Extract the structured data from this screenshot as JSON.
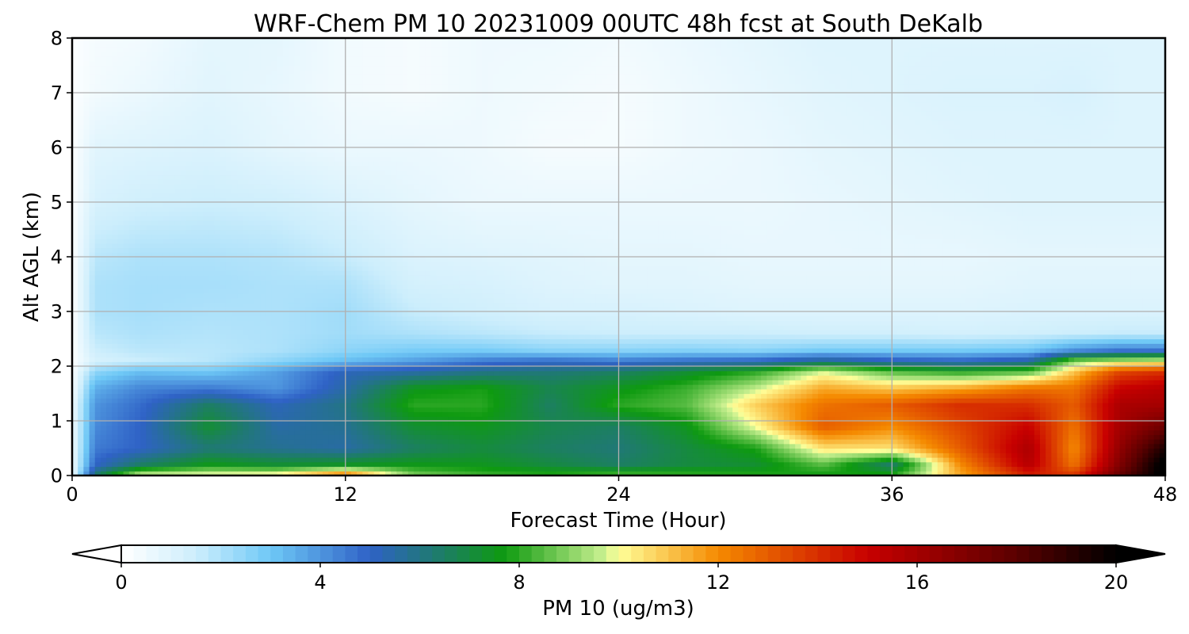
{
  "chart_data": {
    "type": "heatmap",
    "title": "WRF-Chem PM 10  20231009 00UTC 48h fcst at South DeKalb",
    "xlabel": "Forecast Time (Hour)",
    "ylabel": "Alt AGL (km)",
    "xlim": [
      0,
      48
    ],
    "ylim": [
      0,
      8
    ],
    "x_ticks": [
      "0",
      "12",
      "24",
      "36",
      "48"
    ],
    "y_ticks": [
      "0",
      "1",
      "2",
      "3",
      "4",
      "5",
      "6",
      "7",
      "8"
    ],
    "grid": true,
    "colorbar": {
      "label": "PM 10  (ug/m3)",
      "range": [
        0,
        20
      ],
      "ticks": [
        "0",
        "4",
        "8",
        "12",
        "16",
        "20"
      ],
      "extend": "both",
      "stops": [
        {
          "v": 0,
          "c": "#ffffff"
        },
        {
          "v": 1.5,
          "c": "#cdeefc"
        },
        {
          "v": 3,
          "c": "#6ec8f6"
        },
        {
          "v": 5,
          "c": "#2f62c6"
        },
        {
          "v": 6.3,
          "c": "#1f7a70"
        },
        {
          "v": 7.7,
          "c": "#0e9a10"
        },
        {
          "v": 9.7,
          "c": "#c8f090"
        },
        {
          "v": 10,
          "c": "#ffff99"
        },
        {
          "v": 12,
          "c": "#f58a00"
        },
        {
          "v": 15,
          "c": "#c80000"
        },
        {
          "v": 18,
          "c": "#5a0000"
        },
        {
          "v": 20,
          "c": "#000000"
        }
      ]
    },
    "x_hours": [
      0,
      1,
      3,
      6,
      9,
      12,
      15,
      18,
      21,
      24,
      27,
      30,
      33,
      36,
      39,
      42,
      44,
      46,
      48
    ],
    "z_km": [
      0,
      0.05,
      0.2,
      0.5,
      0.9,
      1.3,
      1.6,
      1.9,
      2.1,
      2.3,
      2.6,
      3,
      3.5,
      4,
      5,
      6,
      7,
      8
    ],
    "pm10": [
      [
        0.5,
        6.5,
        10.5,
        10.8,
        11.0,
        12.5,
        9.0,
        8.5,
        7.8,
        8.5,
        8.2,
        8.0,
        8.0,
        7.8,
        12.0,
        15.0,
        14.0,
        18.0,
        20.5
      ],
      [
        0.5,
        6.0,
        9.0,
        9.5,
        9.6,
        11.5,
        8.6,
        8.0,
        7.8,
        8.0,
        7.9,
        7.8,
        7.8,
        7.6,
        11.5,
        14.5,
        13.5,
        17.5,
        20.5
      ],
      [
        0.5,
        5.0,
        6.5,
        7.6,
        7.2,
        7.4,
        7.6,
        7.5,
        7.0,
        6.5,
        7.0,
        7.2,
        8.5,
        6.3,
        12.0,
        15.5,
        12.5,
        17.0,
        20.5
      ],
      [
        0.5,
        4.5,
        5.0,
        6.2,
        5.8,
        5.5,
        6.5,
        7.0,
        6.5,
        6.2,
        7.0,
        7.8,
        10.5,
        10.5,
        13.0,
        15.8,
        12.0,
        16.5,
        19.5
      ],
      [
        0.5,
        4.2,
        5.0,
        7.2,
        5.5,
        5.8,
        7.2,
        7.5,
        6.8,
        6.5,
        7.5,
        10.0,
        13.0,
        12.0,
        13.5,
        15.0,
        12.5,
        16.0,
        17.5
      ],
      [
        0.5,
        4.0,
        4.8,
        6.5,
        5.2,
        6.0,
        8.0,
        8.0,
        6.5,
        8.0,
        8.5,
        10.8,
        12.5,
        13.0,
        14.0,
        14.0,
        13.0,
        15.8,
        16.0
      ],
      [
        0.3,
        3.5,
        4.3,
        4.5,
        4.0,
        5.5,
        7.5,
        7.8,
        6.8,
        7.5,
        8.2,
        9.6,
        11.5,
        11.0,
        11.5,
        12.5,
        12.5,
        15.0,
        15.5
      ],
      [
        0.2,
        2.5,
        3.2,
        3.0,
        3.8,
        5.2,
        5.5,
        6.0,
        6.2,
        6.5,
        7.2,
        8.0,
        9.8,
        8.5,
        8.0,
        8.5,
        11.0,
        13.5,
        14.0
      ],
      [
        0.1,
        1.2,
        1.5,
        1.8,
        2.5,
        3.2,
        3.8,
        4.5,
        4.8,
        4.5,
        4.8,
        5.0,
        5.8,
        5.2,
        5.0,
        5.5,
        9.0,
        9.5,
        9.8
      ],
      [
        0.1,
        1.5,
        1.8,
        1.8,
        2.0,
        2.5,
        2.8,
        2.8,
        2.5,
        2.5,
        2.6,
        2.5,
        2.8,
        2.8,
        2.8,
        3.0,
        4.0,
        4.5,
        4.5
      ],
      [
        0.1,
        1.8,
        2.0,
        1.9,
        2.0,
        2.2,
        2.0,
        1.8,
        1.6,
        1.5,
        1.5,
        1.5,
        1.4,
        1.4,
        1.3,
        1.4,
        1.5,
        1.6,
        1.6
      ],
      [
        0.1,
        2.0,
        2.1,
        2.0,
        2.0,
        2.2,
        1.6,
        1.4,
        1.2,
        1.2,
        1.1,
        1.0,
        1.0,
        1.0,
        1.0,
        1.1,
        1.1,
        1.1,
        1.1
      ],
      [
        0.1,
        2.0,
        2.1,
        2.1,
        2.0,
        2.0,
        1.3,
        1.2,
        1.0,
        0.9,
        0.9,
        0.8,
        0.8,
        0.8,
        0.8,
        0.9,
        0.9,
        0.9,
        0.9
      ],
      [
        0.1,
        1.8,
        2.0,
        2.0,
        1.9,
        1.6,
        1.1,
        1.0,
        0.9,
        0.8,
        0.8,
        0.7,
        0.7,
        0.7,
        0.7,
        0.8,
        0.8,
        0.8,
        0.8
      ],
      [
        0.1,
        1.2,
        1.4,
        1.5,
        1.4,
        1.1,
        0.8,
        0.6,
        0.6,
        0.6,
        0.6,
        0.6,
        0.7,
        0.8,
        0.9,
        1.0,
        1.0,
        1.0,
        1.0
      ],
      [
        0.1,
        0.9,
        1.0,
        1.1,
        0.8,
        0.6,
        0.6,
        0.5,
        0.3,
        0.3,
        0.5,
        0.6,
        0.8,
        0.9,
        1.0,
        1.0,
        1.0,
        1.0,
        1.0
      ],
      [
        0.1,
        0.4,
        0.6,
        0.9,
        0.7,
        0.4,
        0.3,
        0.5,
        0.4,
        0.3,
        0.5,
        0.7,
        0.9,
        1.0,
        1.1,
        1.1,
        1.2,
        1.0,
        1.0
      ],
      [
        0.1,
        0.3,
        0.4,
        0.8,
        0.8,
        0.4,
        0.3,
        0.5,
        0.5,
        0.4,
        0.6,
        0.8,
        1.0,
        1.0,
        1.0,
        1.0,
        1.0,
        1.0,
        1.0
      ]
    ]
  }
}
